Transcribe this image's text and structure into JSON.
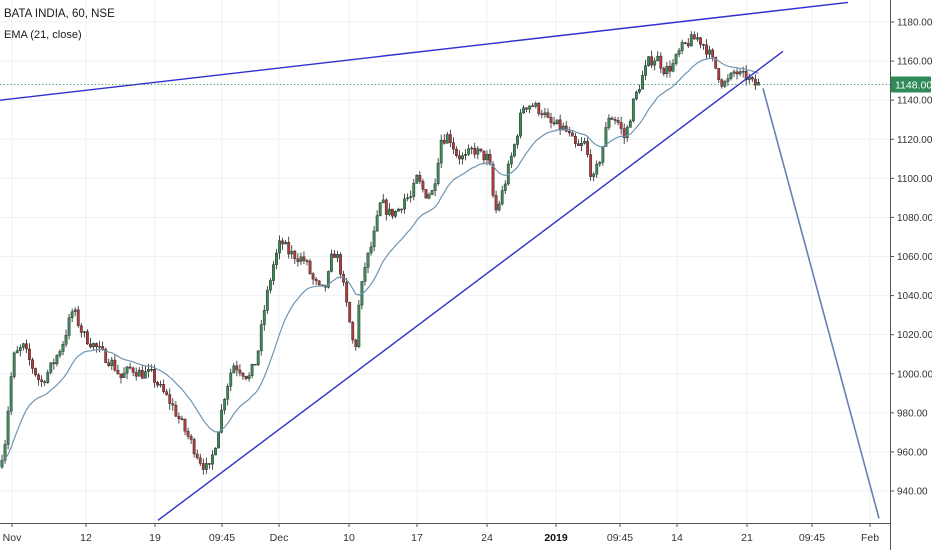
{
  "header": {
    "symbol_line": "BATA INDIA, 60, NSE",
    "indicator_line": "EMA (21, close)"
  },
  "colors": {
    "up": "#3a8a5a",
    "down": "#b23a3a",
    "ema": "#6f95b3",
    "trendline": "#2f2fd0",
    "projection": "#6b7fb6",
    "last_price_bg": "#2e8b57",
    "grid": "#eef0f4"
  },
  "chart_data": {
    "type": "candlestick",
    "symbol": "BATA INDIA",
    "interval": "60",
    "exchange": "NSE",
    "indicator": "EMA (21, close)",
    "last_price": "1148.00",
    "last_price_value": 1148,
    "y_axis": {
      "ticks": [
        "1180.00",
        "1160.00",
        "1140.00",
        "1120.00",
        "1100.00",
        "1080.00",
        "1060.00",
        "1040.00",
        "1020.00",
        "1000.00",
        "980.00",
        "960.00",
        "940.00"
      ],
      "ylim": [
        928,
        1188
      ]
    },
    "x_axis": {
      "ticks": [
        "Nov",
        "12",
        "19",
        "09:45",
        "Dec",
        "10",
        "17",
        "24",
        "2019",
        "09:45",
        "14",
        "21",
        "09:45",
        "Feb"
      ],
      "bold_ticks": [
        "2019"
      ]
    },
    "price_path": [
      [
        0,
        948
      ],
      [
        8,
        965
      ],
      [
        16,
        1008
      ],
      [
        26,
        1014
      ],
      [
        34,
        1005
      ],
      [
        44,
        995
      ],
      [
        56,
        1005
      ],
      [
        66,
        1016
      ],
      [
        76,
        1033
      ],
      [
        86,
        1020
      ],
      [
        96,
        1015
      ],
      [
        106,
        1010
      ],
      [
        116,
        1005
      ],
      [
        124,
        998
      ],
      [
        134,
        1003
      ],
      [
        144,
        1000
      ],
      [
        154,
        1000
      ],
      [
        164,
        992
      ],
      [
        174,
        985
      ],
      [
        184,
        975
      ],
      [
        194,
        965
      ],
      [
        204,
        955
      ],
      [
        212,
        950
      ],
      [
        220,
        968
      ],
      [
        228,
        990
      ],
      [
        236,
        1005
      ],
      [
        244,
        1002
      ],
      [
        252,
        998
      ],
      [
        260,
        1008
      ],
      [
        268,
        1035
      ],
      [
        276,
        1055
      ],
      [
        284,
        1068
      ],
      [
        292,
        1062
      ],
      [
        300,
        1060
      ],
      [
        308,
        1058
      ],
      [
        316,
        1048
      ],
      [
        324,
        1042
      ],
      [
        330,
        1046
      ],
      [
        336,
        1063
      ],
      [
        342,
        1058
      ],
      [
        348,
        1040
      ],
      [
        352,
        1028
      ],
      [
        358,
        1010
      ],
      [
        362,
        1035
      ],
      [
        368,
        1055
      ],
      [
        376,
        1068
      ],
      [
        384,
        1088
      ],
      [
        392,
        1082
      ],
      [
        400,
        1083
      ],
      [
        408,
        1090
      ],
      [
        414,
        1090
      ],
      [
        420,
        1100
      ],
      [
        428,
        1092
      ],
      [
        436,
        1093
      ],
      [
        444,
        1120
      ],
      [
        452,
        1122
      ],
      [
        460,
        1112
      ],
      [
        468,
        1110
      ],
      [
        476,
        1115
      ],
      [
        484,
        1112
      ],
      [
        492,
        1110
      ],
      [
        498,
        1082
      ],
      [
        504,
        1090
      ],
      [
        510,
        1102
      ],
      [
        518,
        1118
      ],
      [
        526,
        1137
      ],
      [
        534,
        1138
      ],
      [
        540,
        1136
      ],
      [
        546,
        1134
      ],
      [
        552,
        1128
      ],
      [
        560,
        1127
      ],
      [
        568,
        1125
      ],
      [
        574,
        1120
      ],
      [
        580,
        1115
      ],
      [
        588,
        1118
      ],
      [
        596,
        1098
      ],
      [
        604,
        1112
      ],
      [
        612,
        1132
      ],
      [
        620,
        1130
      ],
      [
        628,
        1120
      ],
      [
        636,
        1138
      ],
      [
        644,
        1150
      ],
      [
        652,
        1160
      ],
      [
        660,
        1162
      ],
      [
        668,
        1155
      ],
      [
        676,
        1158
      ],
      [
        684,
        1166
      ],
      [
        692,
        1170
      ],
      [
        700,
        1172
      ],
      [
        708,
        1168
      ],
      [
        714,
        1162
      ],
      [
        720,
        1155
      ],
      [
        726,
        1148
      ],
      [
        732,
        1150
      ],
      [
        738,
        1155
      ],
      [
        744,
        1152
      ],
      [
        750,
        1152
      ],
      [
        756,
        1148
      ],
      [
        760,
        1148
      ]
    ]
  },
  "drawings": {
    "upper_trendline": {
      "from": [
        "Nov",
        1140
      ],
      "to": [
        "21",
        1190
      ]
    },
    "lower_trendline": {
      "from": [
        "19",
        925
      ],
      "to": [
        "21",
        1165
      ]
    },
    "projection_line": {
      "from": [
        "21",
        1146
      ],
      "to": [
        "Feb",
        926
      ]
    }
  }
}
